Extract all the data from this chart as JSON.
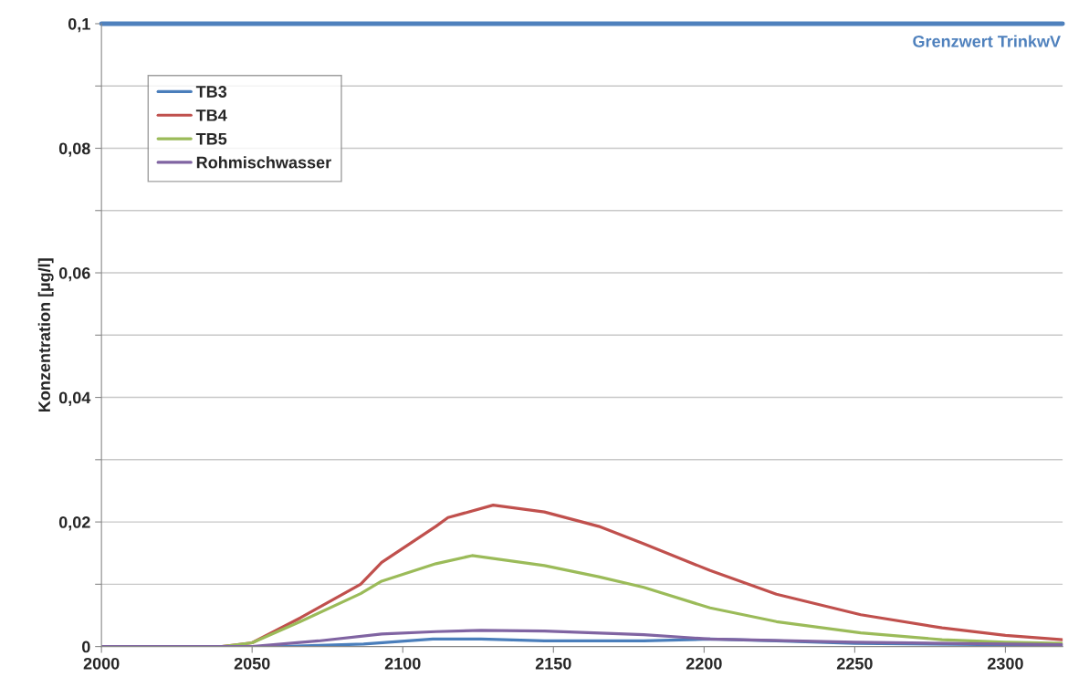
{
  "chart_data": {
    "type": "line",
    "ylabel": "Konzentration [µg/l]",
    "xlim": [
      2000,
      2319
    ],
    "xticks": [
      2000,
      2050,
      2100,
      2150,
      2200,
      2250,
      2300
    ],
    "ylim": [
      0,
      0.1
    ],
    "yticks": [
      {
        "value": 0,
        "label": "0"
      },
      {
        "value": 0.01,
        "label": null
      },
      {
        "value": 0.02,
        "label": "0,02"
      },
      {
        "value": 0.03,
        "label": null
      },
      {
        "value": 0.04,
        "label": "0,04"
      },
      {
        "value": 0.05,
        "label": null
      },
      {
        "value": 0.06,
        "label": "0,06"
      },
      {
        "value": 0.07,
        "label": null
      },
      {
        "value": 0.08,
        "label": "0,08"
      },
      {
        "value": 0.09,
        "label": null
      },
      {
        "value": 0.1,
        "label": "0,1"
      }
    ],
    "grid": "y",
    "legend": "top left",
    "marker": "none",
    "line_style": "solid",
    "ref_lines": [
      {
        "axis": "y",
        "value": 0.1,
        "label": "Grenzwert TrinkwV",
        "color": "#4f81bd"
      }
    ],
    "series": [
      {
        "name": "TB3",
        "color": "#4a7ebb",
        "x": [
          2000,
          2060,
          2087,
          2110,
          2126,
          2147,
          2180,
          2202,
          2224,
          2250,
          2300,
          2319
        ],
        "values": [
          0,
          0,
          0.0004,
          0.0012,
          0.0012,
          0.0009,
          0.0009,
          0.0012,
          0.0009,
          0.0005,
          0.0003,
          0.0002
        ]
      },
      {
        "name": "TB4",
        "color": "#c0504d",
        "x": [
          2000,
          2040,
          2050,
          2066,
          2086,
          2093,
          2111,
          2115,
          2130,
          2147,
          2165,
          2180,
          2202,
          2224,
          2252,
          2279,
          2300,
          2319
        ],
        "values": [
          0,
          0,
          0.0006,
          0.0046,
          0.01,
          0.0135,
          0.0193,
          0.0207,
          0.0227,
          0.0216,
          0.0193,
          0.0165,
          0.0122,
          0.0084,
          0.0051,
          0.003,
          0.0018,
          0.0011
        ]
      },
      {
        "name": "TB5",
        "color": "#9bbb59",
        "x": [
          2000,
          2040,
          2050,
          2066,
          2086,
          2093,
          2111,
          2123,
          2147,
          2165,
          2180,
          2202,
          2224,
          2252,
          2279,
          2300,
          2319
        ],
        "values": [
          0,
          0,
          0.0006,
          0.004,
          0.0085,
          0.0105,
          0.0133,
          0.0146,
          0.013,
          0.0112,
          0.0095,
          0.0062,
          0.004,
          0.0022,
          0.0011,
          0.0007,
          0.0005
        ]
      },
      {
        "name": "Rohmischwasser",
        "color": "#8064a2",
        "x": [
          2000,
          2050,
          2072,
          2093,
          2111,
          2126,
          2147,
          2180,
          2202,
          2250,
          2300,
          2319
        ],
        "values": [
          0,
          0,
          0.0009,
          0.002,
          0.0024,
          0.0026,
          0.0025,
          0.0019,
          0.0012,
          0.0007,
          0.0004,
          0.0003
        ]
      }
    ]
  }
}
